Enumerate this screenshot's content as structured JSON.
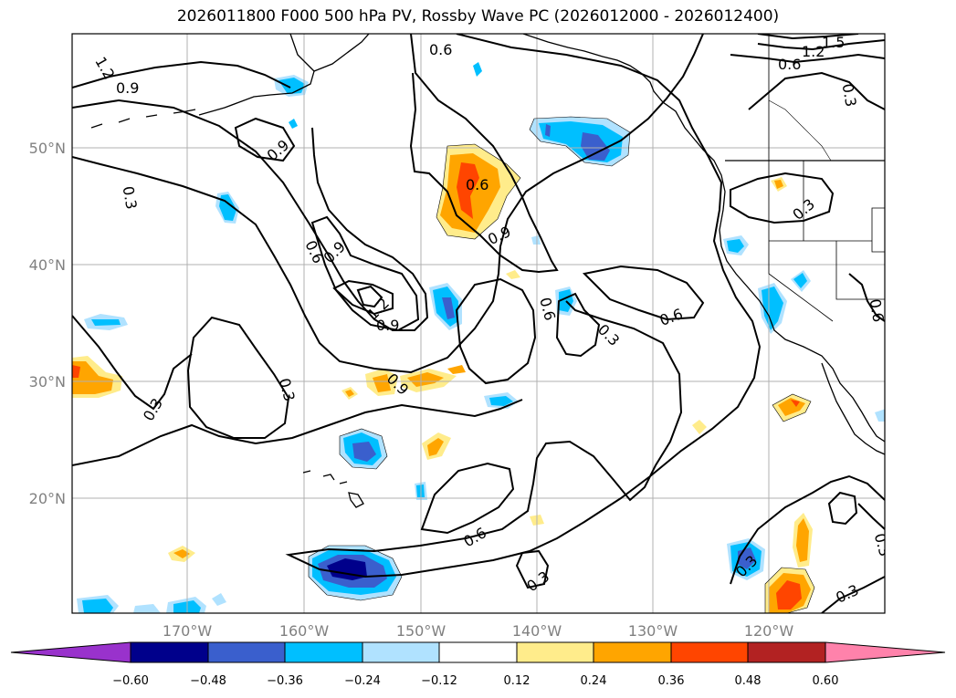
{
  "title": "2026011800 F000 500 hPa PV, Rossby Wave PC (2026012000 - 2026012400)",
  "lat_labels": [
    "50°N",
    "40°N",
    "30°N",
    "20°N"
  ],
  "lon_labels": [
    "170°W",
    "160°W",
    "150°W",
    "140°W",
    "130°W",
    "120°W"
  ],
  "contour_labels": [
    "1.2",
    "0.9",
    "0.6",
    "1.5",
    "1.2",
    "0.6",
    "0.3",
    "0.9",
    "0.3",
    "0.6",
    "0.9",
    "0.6",
    "0.9",
    "1.2",
    "0.9",
    "0.6",
    "0.9",
    "0.3",
    "0.3",
    "0.3",
    "0.6",
    "0.3",
    "0.6",
    "0.6",
    "0.3",
    "0.3",
    "0.3",
    "0.3",
    "0.3",
    "0.3",
    "0.3"
  ],
  "colorbar": {
    "ticks": [
      "−0.60",
      "−0.48",
      "−0.36",
      "−0.24",
      "−0.12",
      "0.12",
      "0.24",
      "0.36",
      "0.48",
      "0.60"
    ],
    "colors": [
      "#9932cc",
      "#00008b",
      "#3a5fcd",
      "#00bfff",
      "#b0e2ff",
      "#ffffff",
      "#ffec8b",
      "#ffa500",
      "#ff4500",
      "#b22222",
      "#ff82ab"
    ]
  },
  "fill_colors": {
    "neg_weak": "#b0e2ff",
    "neg_mid": "#00bfff",
    "neg_strong": "#3a5fcd",
    "neg_max": "#00008b",
    "pos_weak": "#ffec8b",
    "pos_mid": "#ffa500",
    "pos_strong": "#ff4500"
  }
}
